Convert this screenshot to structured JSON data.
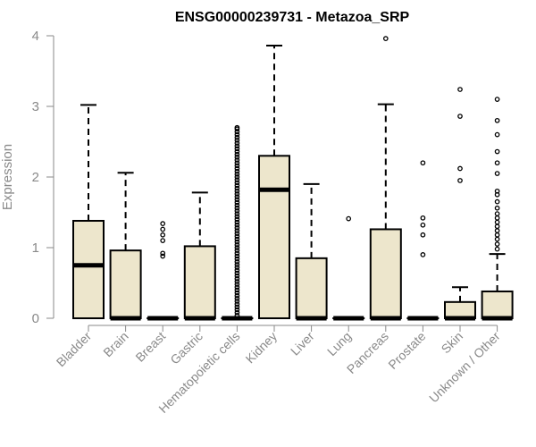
{
  "chart_data": {
    "type": "boxplot",
    "title": "ENSG00000239731 - Metazoa_SRP",
    "xlabel": "",
    "ylabel": "Expression",
    "ylim": [
      0,
      4
    ],
    "yticks": [
      0,
      1,
      2,
      3,
      4
    ],
    "fill_color": "#ede6cc",
    "categories": [
      "Bladder",
      "Brain",
      "Breast",
      "Gastric",
      "Hematopoietic cells",
      "Kidney",
      "Liver",
      "Lung",
      "Pancreas",
      "Prostate",
      "Skin",
      "Unknown / Other"
    ],
    "boxes": [
      {
        "name": "Bladder",
        "q1": 0.0,
        "median": 0.75,
        "q3": 1.38,
        "whisker_low": 0.0,
        "whisker_high": 3.02,
        "outliers": []
      },
      {
        "name": "Brain",
        "q1": 0.0,
        "median": 0.0,
        "q3": 0.96,
        "whisker_low": 0.0,
        "whisker_high": 2.06,
        "outliers": []
      },
      {
        "name": "Breast",
        "q1": 0.0,
        "median": 0.0,
        "q3": 0.0,
        "whisker_low": 0.0,
        "whisker_high": 0.0,
        "outliers": [
          0.88,
          0.92,
          1.1,
          1.18,
          1.26,
          1.34
        ]
      },
      {
        "name": "Gastric",
        "q1": 0.0,
        "median": 0.0,
        "q3": 1.02,
        "whisker_low": 0.0,
        "whisker_high": 1.78,
        "outliers": []
      },
      {
        "name": "Hematopoietic cells",
        "q1": 0.0,
        "median": 0.0,
        "q3": 0.0,
        "whisker_low": 0.0,
        "whisker_high": 0.0,
        "outliers": [
          0.04,
          0.08,
          0.12,
          0.16,
          0.2,
          0.24,
          0.28,
          0.32,
          0.36,
          0.4,
          0.44,
          0.48,
          0.52,
          0.56,
          0.6,
          0.64,
          0.68,
          0.72,
          0.76,
          0.8,
          0.84,
          0.88,
          0.92,
          0.96,
          1.0,
          1.04,
          1.08,
          1.12,
          1.16,
          1.2,
          1.24,
          1.28,
          1.32,
          1.36,
          1.4,
          1.44,
          1.48,
          1.52,
          1.56,
          1.6,
          1.64,
          1.68,
          1.72,
          1.76,
          1.8,
          1.84,
          1.88,
          1.92,
          1.96,
          2.0,
          2.04,
          2.08,
          2.12,
          2.16,
          2.2,
          2.24,
          2.28,
          2.32,
          2.36,
          2.4,
          2.44,
          2.48,
          2.52,
          2.56,
          2.6,
          2.64,
          2.68,
          2.7
        ]
      },
      {
        "name": "Kidney",
        "q1": 0.0,
        "median": 1.82,
        "q3": 2.3,
        "whisker_low": 0.0,
        "whisker_high": 3.86,
        "outliers": []
      },
      {
        "name": "Liver",
        "q1": 0.0,
        "median": 0.0,
        "q3": 0.85,
        "whisker_low": 0.0,
        "whisker_high": 1.9,
        "outliers": []
      },
      {
        "name": "Lung",
        "q1": 0.0,
        "median": 0.0,
        "q3": 0.0,
        "whisker_low": 0.0,
        "whisker_high": 0.0,
        "outliers": [
          1.41
        ]
      },
      {
        "name": "Pancreas",
        "q1": 0.0,
        "median": 0.0,
        "q3": 1.26,
        "whisker_low": 0.0,
        "whisker_high": 3.03,
        "outliers": [
          3.96
        ]
      },
      {
        "name": "Prostate",
        "q1": 0.0,
        "median": 0.0,
        "q3": 0.0,
        "whisker_low": 0.0,
        "whisker_high": 0.0,
        "outliers": [
          0.9,
          1.18,
          1.32,
          1.42,
          2.2
        ]
      },
      {
        "name": "Skin",
        "q1": 0.0,
        "median": 0.0,
        "q3": 0.23,
        "whisker_low": 0.0,
        "whisker_high": 0.44,
        "outliers": [
          1.95,
          2.12,
          2.86,
          3.24
        ]
      },
      {
        "name": "Unknown / Other",
        "q1": 0.0,
        "median": 0.0,
        "q3": 0.38,
        "whisker_low": 0.0,
        "whisker_high": 0.91,
        "outliers": [
          0.98,
          1.05,
          1.12,
          1.18,
          1.24,
          1.3,
          1.36,
          1.42,
          1.48,
          1.56,
          1.65,
          1.75,
          1.8,
          2.05,
          2.2,
          2.36,
          2.6,
          2.8,
          3.1
        ]
      }
    ]
  }
}
